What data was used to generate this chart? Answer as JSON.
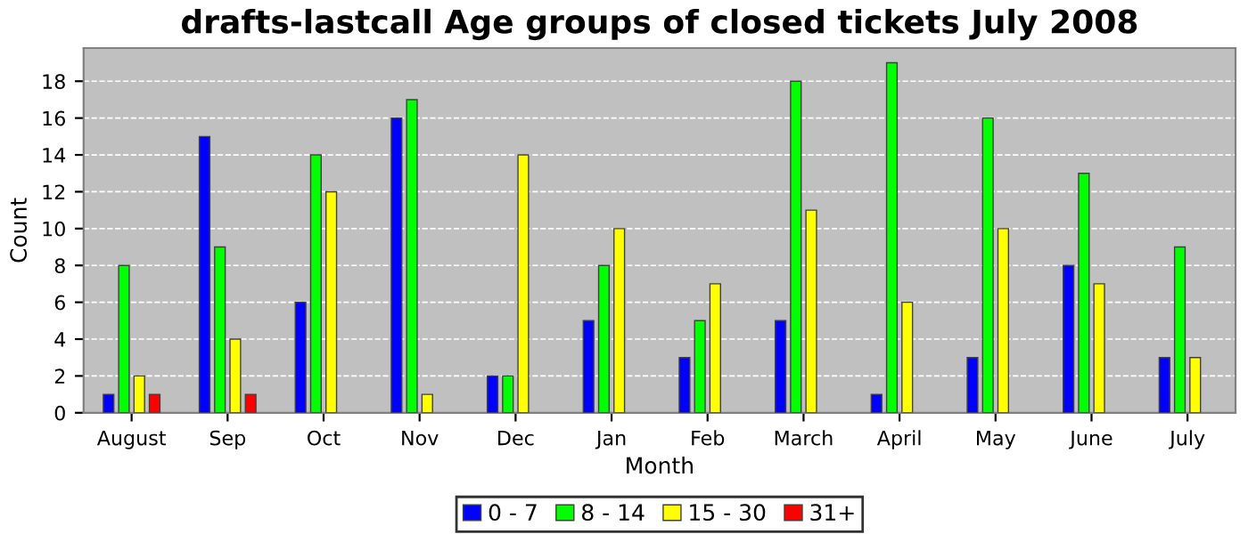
{
  "chart_data": {
    "type": "bar",
    "title": "drafts-lastcall Age groups of closed tickets July 2008",
    "xlabel": "Month",
    "ylabel": "Count",
    "categories": [
      "August",
      "Sep",
      "Oct",
      "Nov",
      "Dec",
      "Jan",
      "Feb",
      "March",
      "April",
      "May",
      "June",
      "July"
    ],
    "series": [
      {
        "name": "0 - 7",
        "color": "#0000ff",
        "values": [
          1,
          15,
          6,
          16,
          2,
          5,
          3,
          5,
          1,
          3,
          8,
          3
        ]
      },
      {
        "name": "8 - 14",
        "color": "#00ff00",
        "values": [
          8,
          9,
          14,
          17,
          2,
          8,
          5,
          18,
          19,
          16,
          13,
          9
        ]
      },
      {
        "name": "15 - 30",
        "color": "#ffff00",
        "values": [
          2,
          4,
          12,
          1,
          14,
          10,
          7,
          11,
          6,
          10,
          7,
          3
        ]
      },
      {
        "name": "31+",
        "color": "#ff0000",
        "values": [
          1,
          1,
          0,
          0,
          0,
          0,
          0,
          0,
          0,
          0,
          0,
          0
        ]
      }
    ],
    "ylim": [
      0,
      19.8
    ],
    "yticks": [
      0,
      2,
      4,
      6,
      8,
      10,
      12,
      14,
      16,
      18
    ],
    "grid": "y",
    "legend": "bottom"
  }
}
